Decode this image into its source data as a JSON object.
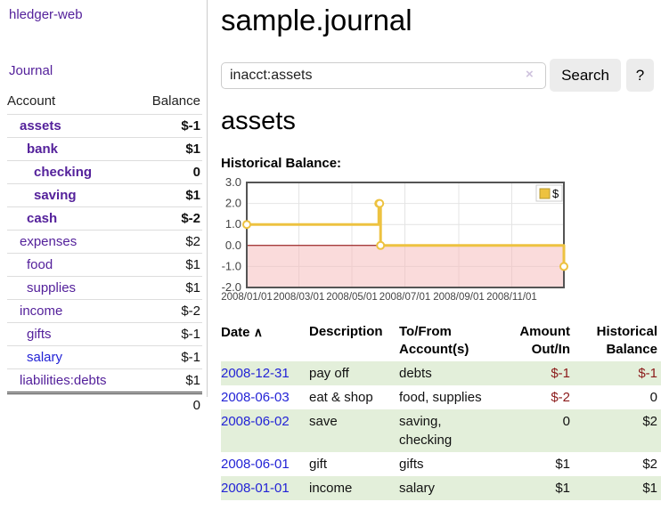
{
  "app": {
    "brand": "hledger-web",
    "nav_journal": "Journal"
  },
  "theme": {
    "link_purple": "#54219b",
    "link_blue": "#2323d6",
    "negative_strong": "#8b1a1a",
    "negative_soft": "#c4696f",
    "row_green": "#e3efda",
    "series_gold": "#edc240"
  },
  "sidebar": {
    "headers": {
      "account": "Account",
      "balance": "Balance"
    },
    "accounts": [
      {
        "name": "assets",
        "depth": 1,
        "bold": true,
        "link_color": "purple",
        "balance": "$-1",
        "balance_class": "neg"
      },
      {
        "name": "bank",
        "depth": 2,
        "bold": true,
        "link_color": "purple",
        "balance": "$1",
        "balance_class": ""
      },
      {
        "name": "checking",
        "depth": 3,
        "bold": true,
        "link_color": "purple",
        "balance": "0",
        "balance_class": ""
      },
      {
        "name": "saving",
        "depth": 3,
        "bold": true,
        "link_color": "purple",
        "balance": "$1",
        "balance_class": ""
      },
      {
        "name": "cash",
        "depth": 2,
        "bold": true,
        "link_color": "purple",
        "balance": "$-2",
        "balance_class": "neg"
      },
      {
        "name": "expenses",
        "depth": 1,
        "bold": false,
        "link_color": "purple",
        "balance": "$2",
        "balance_class": ""
      },
      {
        "name": "food",
        "depth": 2,
        "bold": false,
        "link_color": "purple",
        "balance": "$1",
        "balance_class": ""
      },
      {
        "name": "supplies",
        "depth": 2,
        "bold": false,
        "link_color": "purple",
        "balance": "$1",
        "balance_class": ""
      },
      {
        "name": "income",
        "depth": 1,
        "bold": false,
        "link_color": "purple",
        "balance": "$-2",
        "balance_class": "negsoft"
      },
      {
        "name": "gifts",
        "depth": 2,
        "bold": false,
        "link_color": "purple",
        "balance": "$-1",
        "balance_class": "negsoft"
      },
      {
        "name": "salary",
        "depth": 2,
        "bold": false,
        "link_color": "blue",
        "balance": "$-1",
        "balance_class": "negsoft"
      },
      {
        "name": "liabilities:debts",
        "depth": 1,
        "bold": false,
        "link_color": "purple",
        "balance": "$1",
        "balance_class": ""
      }
    ],
    "total": "0"
  },
  "main": {
    "title": "sample.journal",
    "search": {
      "value": "inacct:assets",
      "clear_icon": "×",
      "button_label": "Search",
      "help_label": "?"
    },
    "account_heading": "assets",
    "chart_label": "Historical Balance:"
  },
  "chart_data": {
    "type": "line",
    "title": "Historical Balance",
    "step": true,
    "series": [
      {
        "name": "$",
        "color": "#edc240",
        "points": [
          [
            "2008-01-01",
            1
          ],
          [
            "2008-06-01",
            2
          ],
          [
            "2008-06-02",
            2
          ],
          [
            "2008-06-03",
            0
          ],
          [
            "2008-12-31",
            -1
          ]
        ]
      }
    ],
    "xlim": [
      "2008-01-01",
      "2008-12-31"
    ],
    "ylim": [
      -2,
      3
    ],
    "xticks": [
      [
        "2008-01-01",
        "2008/01/01"
      ],
      [
        "2008-03-01",
        "2008/03/01"
      ],
      [
        "2008-05-01",
        "2008/05/01"
      ],
      [
        "2008-07-01",
        "2008/07/01"
      ],
      [
        "2008-09-01",
        "2008/09/01"
      ],
      [
        "2008-11-01",
        "2008/11/01"
      ]
    ],
    "yticks": [
      [
        3,
        "3.0"
      ],
      [
        2,
        "2.0"
      ],
      [
        1,
        "1.0"
      ],
      [
        0,
        "0.0"
      ],
      [
        -1,
        "-1.0"
      ],
      [
        -2,
        "-2.0"
      ]
    ],
    "legend": {
      "label": "$",
      "position": "top-right"
    },
    "grid": true,
    "negative_fill": "#f5b8b8",
    "zero_line_color": "#8b0000",
    "border_color": "#545454"
  },
  "register": {
    "sort_indicator": "∧",
    "headers": [
      {
        "line1": "Date",
        "line2": ""
      },
      {
        "line1": "Description",
        "line2": ""
      },
      {
        "line1": "To/From",
        "line2": "Account(s)"
      },
      {
        "line1": "Amount",
        "line2": "Out/In"
      },
      {
        "line1": "Historical",
        "line2": "Balance"
      }
    ],
    "rows": [
      {
        "date": "2008-12-31",
        "description": "pay off",
        "accounts": "debts",
        "amount": "$-1",
        "amount_class": "neg",
        "balance": "$-1",
        "balance_class": "neg",
        "shaded": true
      },
      {
        "date": "2008-06-03",
        "description": "eat & shop",
        "accounts": "food, supplies",
        "amount": "$-2",
        "amount_class": "neg",
        "balance": "0",
        "balance_class": "",
        "shaded": false
      },
      {
        "date": "2008-06-02",
        "description": "save",
        "accounts": "saving,\nchecking",
        "amount": "0",
        "amount_class": "",
        "balance": "$2",
        "balance_class": "",
        "shaded": true
      },
      {
        "date": "2008-06-01",
        "description": "gift",
        "accounts": "gifts",
        "amount": "$1",
        "amount_class": "",
        "balance": "$2",
        "balance_class": "",
        "shaded": false
      },
      {
        "date": "2008-01-01",
        "description": "income",
        "accounts": "salary",
        "amount": "$1",
        "amount_class": "",
        "balance": "$1",
        "balance_class": "",
        "shaded": true
      }
    ]
  }
}
